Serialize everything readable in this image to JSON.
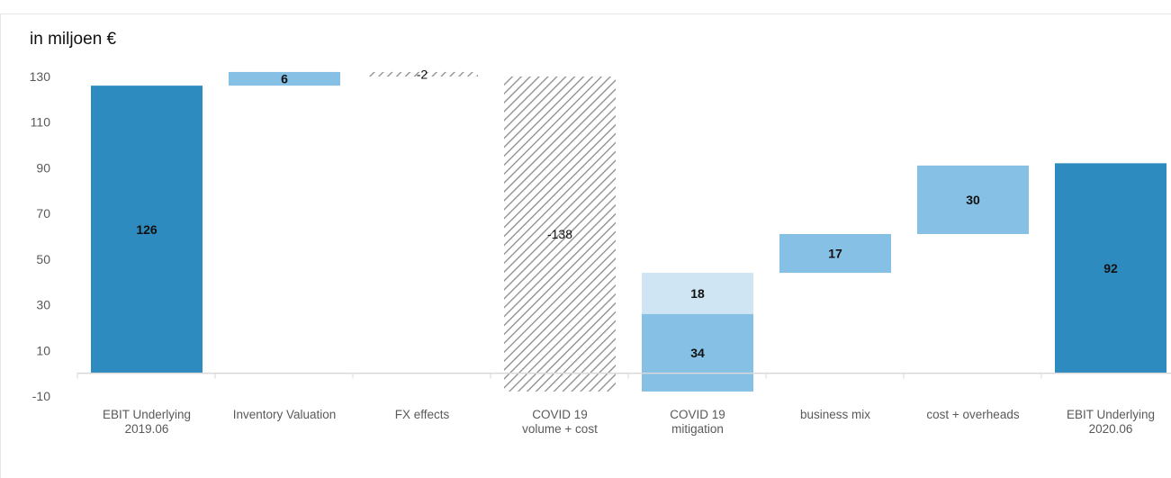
{
  "unit_label": "in miljoen €",
  "colors": {
    "total": "#2e8bc0",
    "increase": "#86c0e4",
    "increase_light": "#cfe5f4",
    "decrease_hatch": "#8a8a8a"
  },
  "chart_data": {
    "type": "bar",
    "subtype": "waterfall",
    "title": "",
    "xlabel": "",
    "ylabel": "",
    "ylim": [
      -10,
      130
    ],
    "yticks": [
      130,
      110,
      90,
      70,
      50,
      30,
      10,
      -10
    ],
    "grid": false,
    "categories": [
      "EBIT Underlying\n2019.06",
      "Inventory Valuation",
      "FX effects",
      "COVID 19\nvolume + cost",
      "COVID 19\nmitigation",
      "business mix",
      "cost + overheads",
      "EBIT Underlying\n2020.06"
    ],
    "bars": [
      {
        "kind": "total",
        "segments": [
          {
            "start": 0,
            "end": 126,
            "label": "126",
            "style": "total"
          }
        ]
      },
      {
        "kind": "delta",
        "segments": [
          {
            "start": 126,
            "end": 132,
            "label": "6",
            "style": "increase"
          }
        ]
      },
      {
        "kind": "delta",
        "segments": [
          {
            "start": 132,
            "end": 130,
            "label": "-2",
            "style": "decrease"
          }
        ]
      },
      {
        "kind": "delta",
        "segments": [
          {
            "start": 130,
            "end": -8,
            "label": "-138",
            "style": "decrease"
          }
        ]
      },
      {
        "kind": "delta",
        "segments": [
          {
            "start": -8,
            "end": 26,
            "label": "34",
            "style": "increase"
          },
          {
            "start": 26,
            "end": 44,
            "label": "18",
            "style": "increase_light"
          }
        ]
      },
      {
        "kind": "delta",
        "segments": [
          {
            "start": 44,
            "end": 61,
            "label": "17",
            "style": "increase"
          }
        ]
      },
      {
        "kind": "delta",
        "segments": [
          {
            "start": 61,
            "end": 91,
            "label": "30",
            "style": "increase"
          }
        ]
      },
      {
        "kind": "total",
        "segments": [
          {
            "start": 0,
            "end": 92,
            "label": "92",
            "style": "total"
          }
        ]
      }
    ]
  }
}
